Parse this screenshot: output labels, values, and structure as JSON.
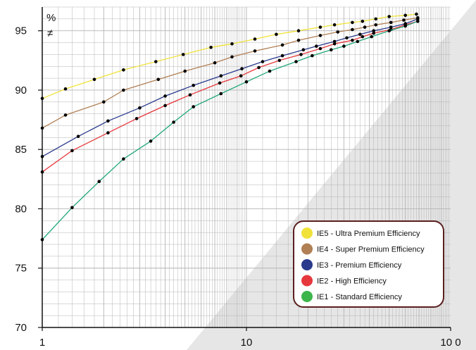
{
  "chart_data": {
    "type": "line",
    "title": "",
    "xlabel": "",
    "ylabel": "%",
    "ylabel_symbol": "≠",
    "x_scale": "log",
    "xlim": [
      1,
      100
    ],
    "ylim": [
      70,
      97
    ],
    "x_ticks": [
      1,
      10,
      100
    ],
    "x_tick_labels": [
      "1",
      "10",
      "10 0"
    ],
    "y_ticks": [
      70,
      75,
      80,
      85,
      90,
      95
    ],
    "y_tick_labels": [
      "70",
      "75",
      "80",
      "85",
      "90",
      "95"
    ],
    "grid": true,
    "legend_position": "bottom-right",
    "background_wedge_color": "#e6e6e6",
    "grid_color": "#b4b4b4",
    "legend_border_color": "#5a1e1e",
    "series": [
      {
        "name": "IE5 - Ultra Premium Efficiency",
        "color": "#f1e23a",
        "x": [
          1,
          1.3,
          1.8,
          2.5,
          3.6,
          4.9,
          6.7,
          8.5,
          11,
          14,
          18,
          23,
          27,
          33,
          37,
          43,
          50,
          60,
          68
        ],
        "y": [
          89.3,
          90.1,
          90.9,
          91.7,
          92.4,
          93.0,
          93.6,
          93.9,
          94.3,
          94.7,
          95.0,
          95.3,
          95.5,
          95.7,
          95.8,
          96.0,
          96.2,
          96.3,
          96.4
        ]
      },
      {
        "name": "IE4 - Super Premium Efficiency",
        "color": "#b07f54",
        "x": [
          1,
          1.3,
          2,
          2.5,
          3.7,
          5,
          7,
          8.5,
          11,
          15,
          18,
          23,
          28,
          33,
          38,
          43,
          51,
          59,
          69
        ],
        "y": [
          86.8,
          87.9,
          89.0,
          90.0,
          90.9,
          91.6,
          92.3,
          92.8,
          93.3,
          93.8,
          94.2,
          94.6,
          94.9,
          95.1,
          95.3,
          95.5,
          95.7,
          95.9,
          96.1
        ]
      },
      {
        "name": "IE3 - Premium Efficiency",
        "color": "#2a3a8c",
        "x": [
          1,
          1.5,
          2.1,
          3,
          4,
          5.5,
          7.5,
          9.5,
          12,
          15,
          19,
          22,
          27,
          31,
          36,
          42,
          51,
          60,
          69
        ],
        "y": [
          84.4,
          86.1,
          87.4,
          88.5,
          89.5,
          90.4,
          91.2,
          91.8,
          92.4,
          92.9,
          93.4,
          93.7,
          94.1,
          94.4,
          94.7,
          95.0,
          95.3,
          95.6,
          96.0
        ]
      },
      {
        "name": "IE2 - High Efficiency",
        "color": "#e6373d",
        "x": [
          1,
          1.4,
          2.1,
          2.9,
          4,
          5.3,
          7.4,
          9.4,
          11.5,
          14.5,
          18.5,
          23,
          27,
          33,
          37,
          42,
          51,
          60,
          69
        ],
        "y": [
          83.1,
          84.9,
          86.4,
          87.6,
          88.7,
          89.6,
          90.6,
          91.2,
          91.9,
          92.5,
          93.0,
          93.5,
          93.9,
          94.2,
          94.5,
          94.8,
          95.1,
          95.5,
          95.8
        ]
      },
      {
        "name": "IE1 - Standard Efficiency",
        "color": "#20a77a",
        "x": [
          1,
          1.4,
          1.9,
          2.5,
          3.4,
          4.4,
          5.5,
          7.5,
          10,
          13,
          17.5,
          21,
          26,
          30,
          35,
          41,
          50,
          60,
          69
        ],
        "y": [
          77.4,
          80.1,
          82.3,
          84.2,
          85.7,
          87.3,
          88.6,
          89.7,
          90.7,
          91.6,
          92.4,
          92.9,
          93.4,
          93.7,
          94.1,
          94.5,
          95.0,
          95.4,
          95.8
        ]
      }
    ],
    "legend": [
      {
        "label": "IE5 - Ultra Premium Efficiency",
        "color": "#f1e23a"
      },
      {
        "label": "IE4 - Super Premium Efficiency",
        "color": "#b07f54"
      },
      {
        "label": "IE3 - Premium Efficiency",
        "color": "#2a3a8c"
      },
      {
        "label": "IE2 - High Efficiency",
        "color": "#e6373d"
      },
      {
        "label": "IE1 - Standard Efficiency",
        "color": "#3cb54a"
      }
    ]
  }
}
